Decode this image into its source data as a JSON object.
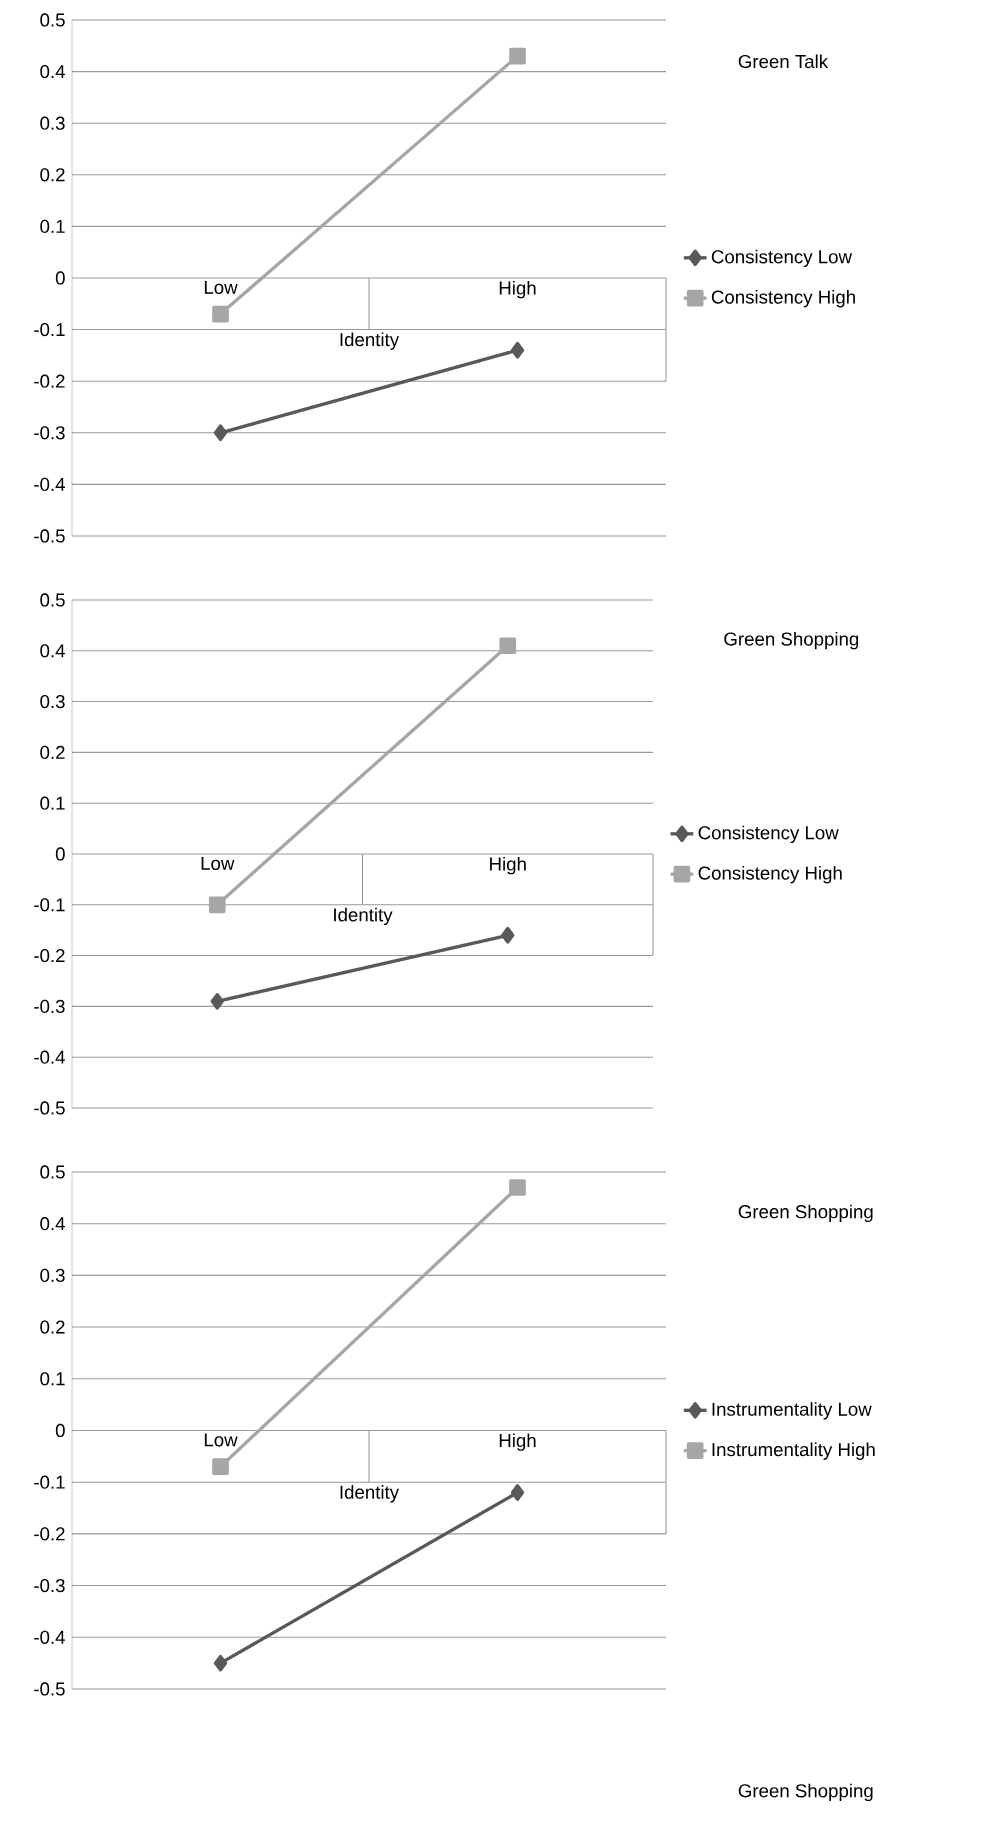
{
  "chart_data": [
    {
      "type": "line",
      "annotations": [
        "Green Talk"
      ],
      "xlabel": "Identity",
      "categories": [
        "Low",
        "High"
      ],
      "series": [
        {
          "name": "Consistency Low",
          "color": "#595959",
          "marker": "diamond",
          "values": [
            -0.3,
            -0.14
          ]
        },
        {
          "name": "Consistency High",
          "color": "#a6a6a6",
          "marker": "square",
          "values": [
            -0.07,
            0.43
          ]
        }
      ],
      "ylim": [
        -0.5,
        0.5
      ],
      "yticks": [
        0.5,
        0.4,
        0.3,
        0.2,
        0.1,
        0,
        -0.1,
        -0.2,
        -0.3,
        -0.4,
        -0.5
      ],
      "grid": "y",
      "legend": "right"
    },
    {
      "type": "line",
      "annotations": [
        "Green Shopping"
      ],
      "xlabel": "Identity",
      "categories": [
        "Low",
        "High"
      ],
      "series": [
        {
          "name": "Consistency Low",
          "color": "#595959",
          "marker": "diamond",
          "values": [
            -0.29,
            -0.16
          ]
        },
        {
          "name": "Consistency High",
          "color": "#a6a6a6",
          "marker": "square",
          "values": [
            -0.1,
            0.41
          ]
        }
      ],
      "ylim": [
        -0.5,
        0.5
      ],
      "yticks": [
        0.5,
        0.4,
        0.3,
        0.2,
        0.1,
        0,
        -0.1,
        -0.2,
        -0.3,
        -0.4,
        -0.5
      ],
      "grid": "y",
      "legend": "right"
    },
    {
      "type": "line",
      "annotations": [
        "Green Shopping",
        "Green Shopping"
      ],
      "xlabel": "Identity",
      "categories": [
        "Low",
        "High"
      ],
      "series": [
        {
          "name": "Instrumentality Low",
          "color": "#595959",
          "marker": "diamond",
          "values": [
            -0.45,
            -0.12
          ]
        },
        {
          "name": "Instrumentality High",
          "color": "#a6a6a6",
          "marker": "square",
          "values": [
            -0.07,
            0.47
          ]
        }
      ],
      "ylim": [
        -0.5,
        0.5
      ],
      "yticks": [
        0.5,
        0.4,
        0.3,
        0.2,
        0.1,
        0,
        -0.1,
        -0.2,
        -0.3,
        -0.4,
        -0.5
      ],
      "grid": "y",
      "legend": "right"
    }
  ]
}
